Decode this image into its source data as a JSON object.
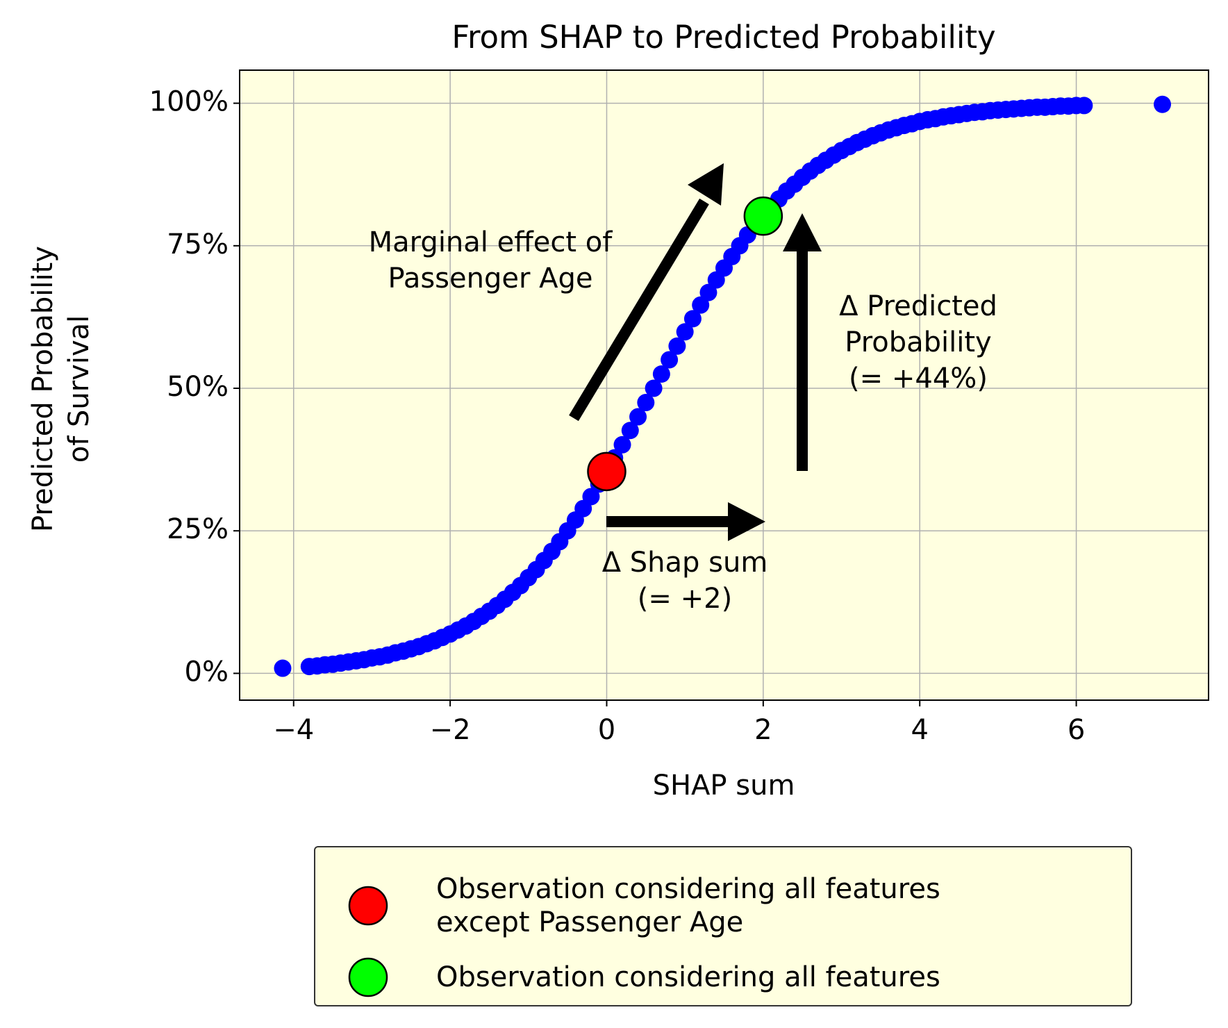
{
  "chart_data": {
    "type": "scatter",
    "title": "From SHAP to Predicted Probability",
    "x_label": "SHAP sum",
    "y_label": "Predicted Probability\nof Survival",
    "xlim": [
      -4.69,
      7.69
    ],
    "ylim": [
      -4.7,
      105.8
    ],
    "xticks": [
      {
        "value": -4,
        "label": "−4"
      },
      {
        "value": -2,
        "label": "−2"
      },
      0,
      2,
      4,
      6
    ],
    "yticks": [
      {
        "value": 0,
        "label": "0%"
      },
      {
        "value": 25,
        "label": "25%"
      },
      {
        "value": 50,
        "label": "50%"
      },
      {
        "value": 75,
        "label": "75%"
      },
      {
        "value": 100,
        "label": "100%"
      }
    ],
    "grid": true,
    "legend": "lower center",
    "series": [
      {
        "color": "#0000ff",
        "x": [
          -4.14,
          -3.8,
          -3.7,
          -3.6,
          -3.5,
          -3.4,
          -3.3,
          -3.2,
          -3.1,
          -3.0,
          -2.9,
          -2.8,
          -2.7,
          -2.6,
          -2.5,
          -2.4,
          -2.3,
          -2.2,
          -2.1,
          -2.0,
          -1.9,
          -1.8,
          -1.7,
          -1.6,
          -1.5,
          -1.4,
          -1.3,
          -1.2,
          -1.1,
          -1.0,
          -0.9,
          -0.8,
          -0.7,
          -0.6,
          -0.5,
          -0.4,
          -0.3,
          -0.2,
          -0.1,
          0.0,
          0.1,
          0.2,
          0.3,
          0.4,
          0.5,
          0.6,
          0.7,
          0.8,
          0.9,
          1.0,
          1.1,
          1.2,
          1.3,
          1.4,
          1.5,
          1.6,
          1.7,
          1.8,
          1.9,
          2.0,
          2.1,
          2.2,
          2.3,
          2.4,
          2.5,
          2.6,
          2.7,
          2.8,
          2.9,
          3.0,
          3.1,
          3.2,
          3.3,
          3.4,
          3.5,
          3.6,
          3.7,
          3.8,
          3.9,
          4.0,
          4.1,
          4.2,
          4.3,
          4.4,
          4.5,
          4.6,
          4.7,
          4.8,
          4.9,
          5.0,
          5.1,
          5.2,
          5.3,
          5.4,
          5.5,
          5.6,
          5.7,
          5.8,
          5.9,
          6.0,
          6.1,
          7.1
        ],
        "values": [
          0.9,
          1.2,
          1.3,
          1.5,
          1.6,
          1.8,
          2.0,
          2.2,
          2.4,
          2.7,
          2.9,
          3.2,
          3.6,
          3.9,
          4.3,
          4.7,
          5.2,
          5.7,
          6.3,
          6.9,
          7.6,
          8.3,
          9.1,
          10.0,
          10.9,
          11.9,
          13.0,
          14.2,
          15.4,
          16.8,
          18.2,
          19.8,
          21.4,
          23.1,
          25.0,
          26.9,
          28.9,
          31.0,
          33.2,
          35.4,
          37.8,
          40.1,
          42.6,
          45.0,
          47.5,
          50.0,
          52.5,
          55.0,
          57.4,
          59.9,
          62.2,
          64.6,
          66.8,
          69.0,
          71.1,
          73.1,
          75.0,
          76.9,
          78.6,
          80.2,
          81.8,
          83.2,
          84.6,
          85.8,
          87.0,
          88.1,
          89.1,
          90.0,
          90.9,
          91.7,
          92.4,
          93.1,
          93.7,
          94.3,
          94.8,
          95.3,
          95.7,
          96.1,
          96.4,
          96.8,
          97.1,
          97.3,
          97.6,
          97.8,
          98.0,
          98.2,
          98.4,
          98.5,
          98.7,
          98.8,
          98.9,
          99.0,
          99.1,
          99.2,
          99.3,
          99.3,
          99.4,
          99.5,
          99.5,
          99.6,
          99.6,
          99.8
        ]
      },
      {
        "name": "Observation considering all features\nexcept Passenger Age",
        "color": "#ff0000",
        "x": [
          0
        ],
        "values": [
          35.4
        ]
      },
      {
        "name": "Observation considering all features",
        "color": "#00ff00",
        "x": [
          2
        ],
        "values": [
          80.2
        ]
      }
    ],
    "annotations": [
      "Marginal effect of\nPassenger Age",
      "Δ Predicted\nProbability\n(= +44%)",
      "Δ Shap sum\n(= +2)"
    ]
  }
}
